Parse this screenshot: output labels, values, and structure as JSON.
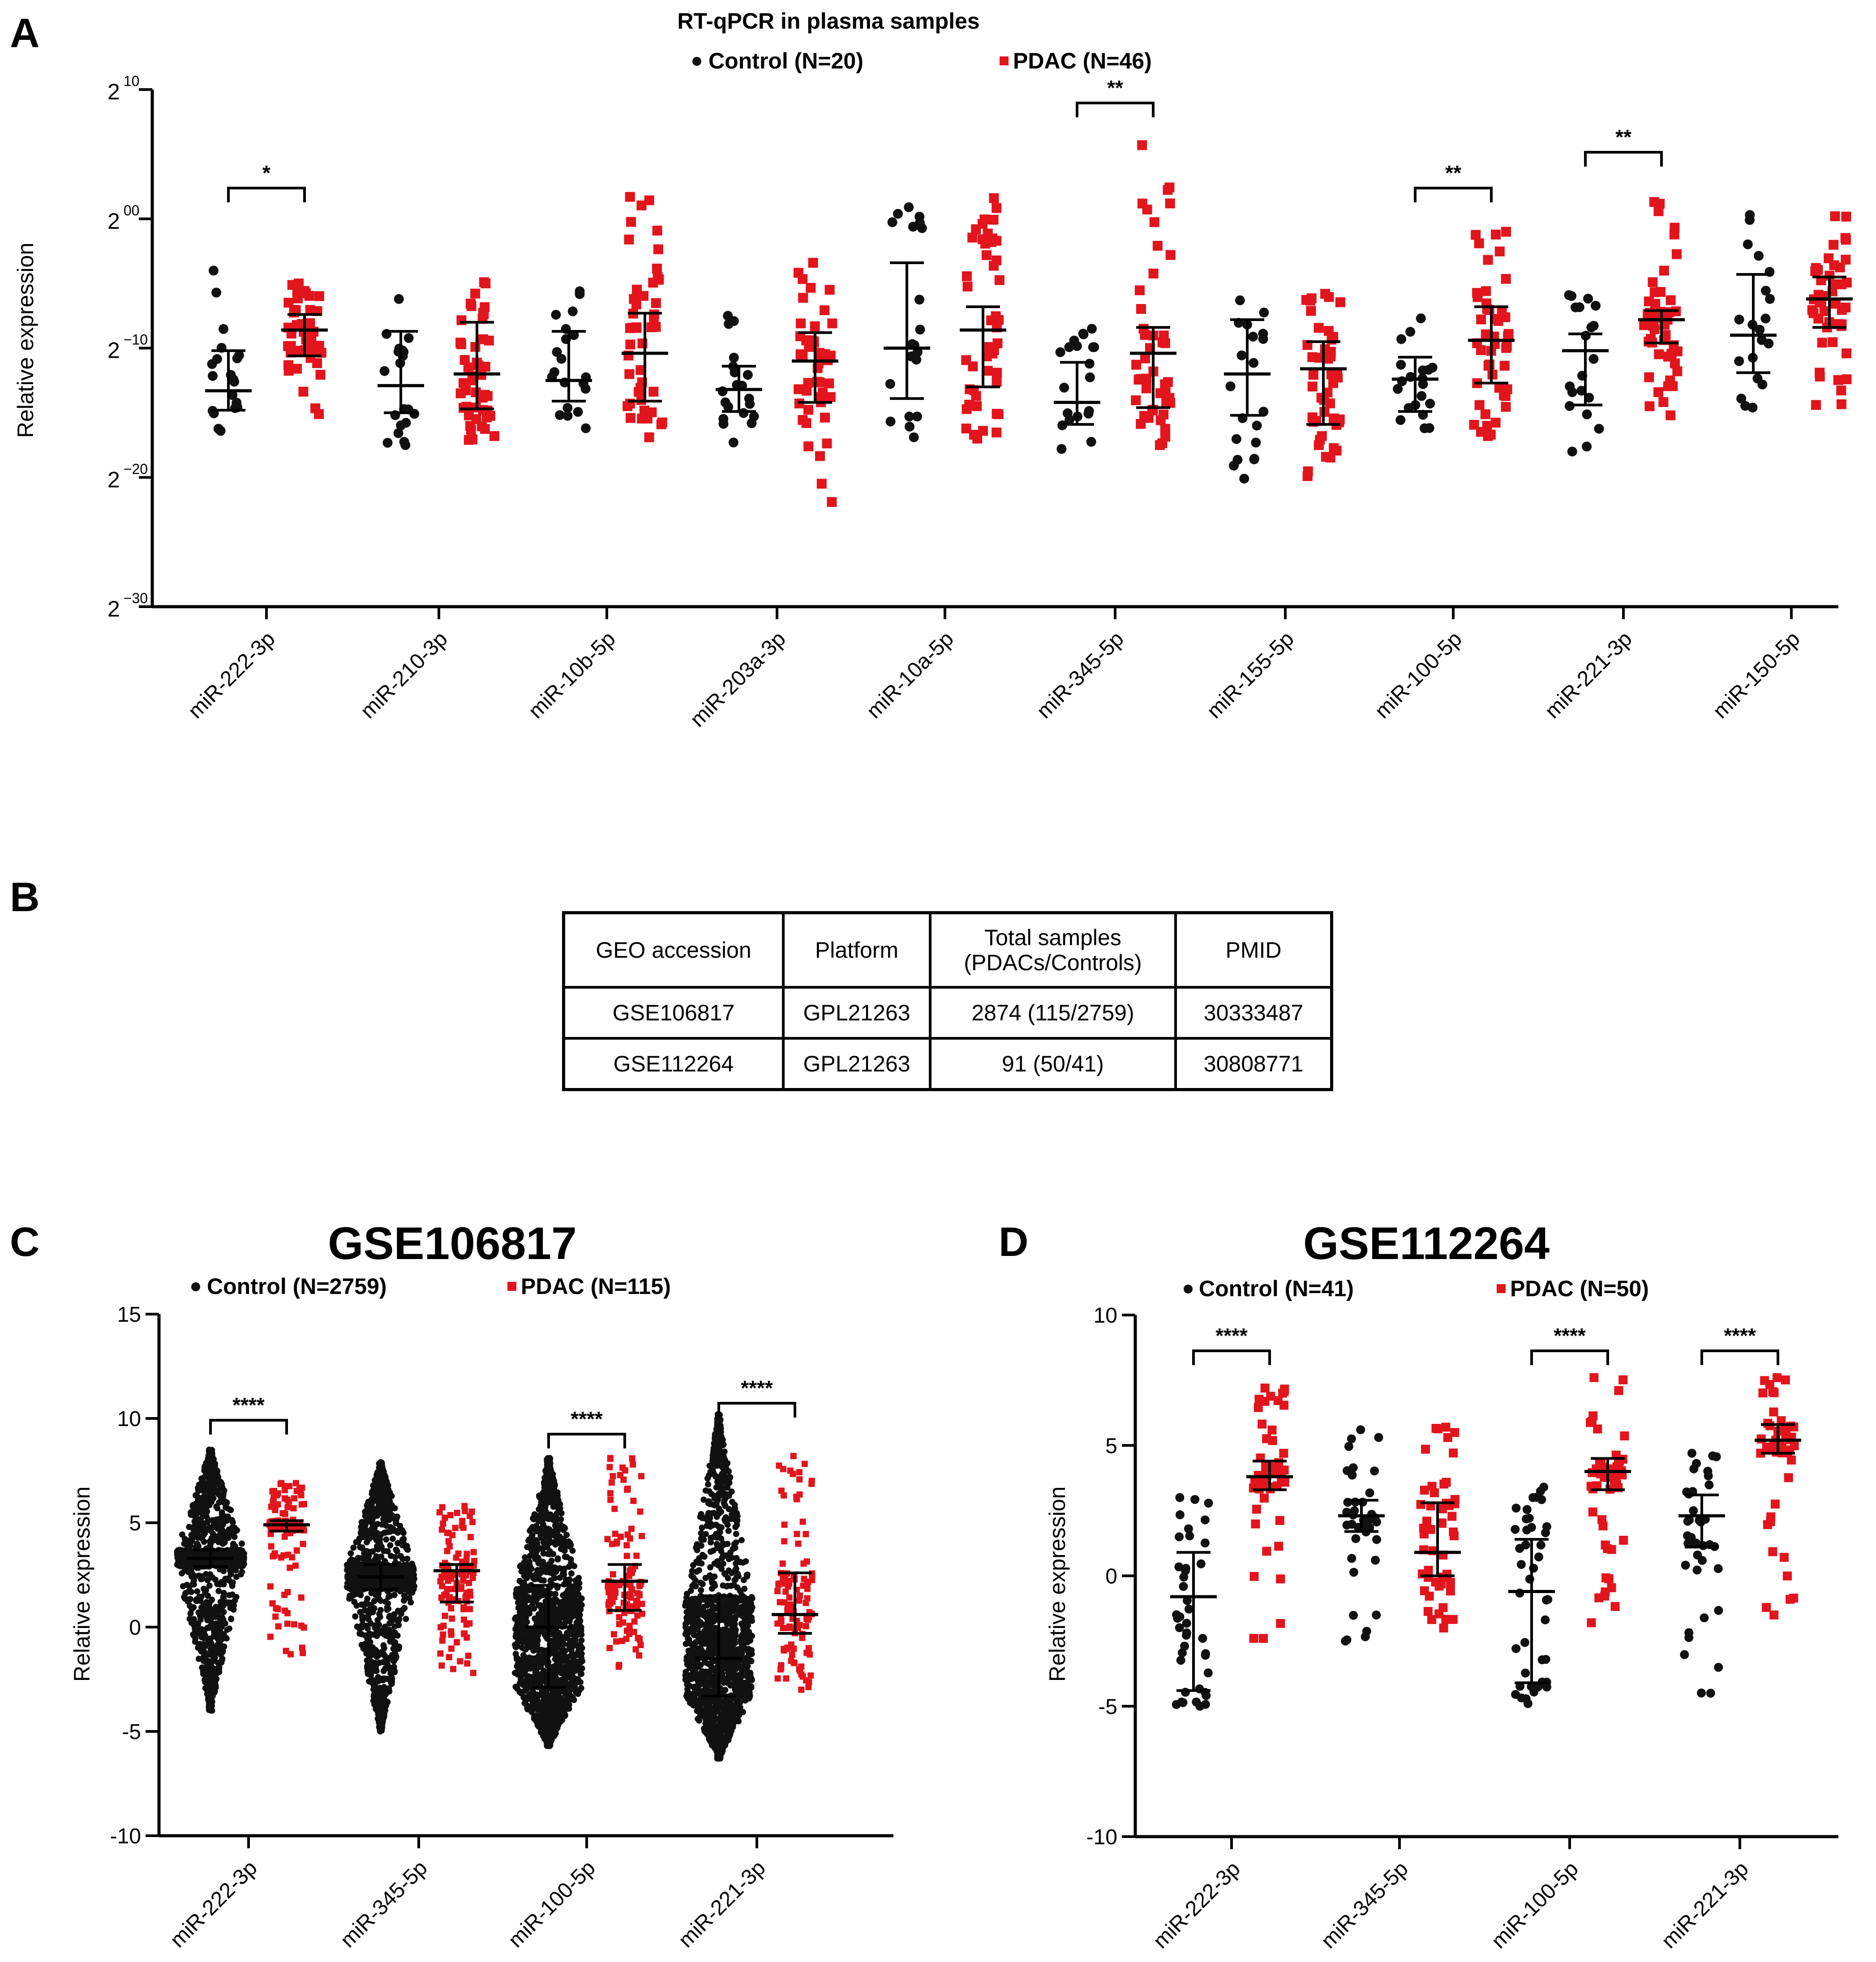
{
  "panels": {
    "A": {
      "letter": "A",
      "title": "RT-qPCR in plasma samples",
      "legend": {
        "control": "Control (N=20)",
        "pdac": "PDAC (N=46)"
      },
      "ylabel": "Relative expression",
      "yticks": [
        {
          "base": "2",
          "exp": "10",
          "value": 10
        },
        {
          "base": "2",
          "exp": "00",
          "value": 0
        },
        {
          "base": "2",
          "exp": "−10",
          "value": -10
        },
        {
          "base": "2",
          "exp": "−20",
          "value": -20
        },
        {
          "base": "2",
          "exp": "−30",
          "value": -30
        }
      ]
    },
    "B": {
      "letter": "B",
      "headers": [
        "GEO accession",
        "Platform",
        "Total samples\n(PDACs/Controls)",
        "PMID"
      ],
      "rows": [
        [
          "GSE106817",
          "GPL21263",
          "2874 (115/2759)",
          "30333487"
        ],
        [
          "GSE112264",
          "GPL21263",
          "91 (50/41)",
          "30808771"
        ]
      ]
    },
    "C": {
      "letter": "C",
      "title": "GSE106817",
      "legend": {
        "control": "Control (N=2759)",
        "pdac": "PDAC (N=115)"
      },
      "ylabel": "Relative expression"
    },
    "D": {
      "letter": "D",
      "title": "GSE112264",
      "legend": {
        "control": "Control (N=41)",
        "pdac": "PDAC (N=50)"
      },
      "ylabel": "Relative expression"
    }
  },
  "colors": {
    "control": "#111111",
    "pdac": "#e2141c",
    "axis": "#000000"
  },
  "chart_data": [
    {
      "id": "A",
      "type": "scatter",
      "title": "RT-qPCR in plasma samples",
      "ylabel": "Relative expression",
      "y_scale": "log2",
      "ylim": [
        -30,
        10
      ],
      "categories": [
        "miR-222-3p",
        "miR-210-3p",
        "miR-10b-5p",
        "miR-203a-3p",
        "miR-10a-5p",
        "miR-345-5p",
        "miR-155-5p",
        "miR-100-5p",
        "miR-221-3p",
        "miR-150-5p"
      ],
      "series": [
        {
          "name": "Control",
          "n": 20,
          "median": [
            -13.3,
            -12.9,
            -12.5,
            -13.2,
            -10.0,
            -14.2,
            -12.0,
            -12.4,
            -10.2,
            -9.0
          ],
          "q1": [
            -14.8,
            -15.0,
            -14.1,
            -14.9,
            -13.9,
            -15.9,
            -15.2,
            -14.9,
            -14.4,
            -11.9
          ],
          "q3": [
            -10.2,
            -8.7,
            -8.7,
            -11.4,
            -3.4,
            -11.1,
            -7.8,
            -10.7,
            -8.9,
            -4.3
          ],
          "min": [
            -16.4,
            -17.5,
            -16.2,
            -17.3,
            -16.9,
            -17.8,
            -20.1,
            -16.2,
            -18.0,
            -14.6
          ],
          "max": [
            -4.0,
            -6.2,
            -5.6,
            -7.5,
            0.9,
            -8.5,
            -6.3,
            -7.7,
            -5.9,
            0.3
          ]
        },
        {
          "name": "PDAC",
          "n": 46,
          "median": [
            -8.6,
            -12.0,
            -10.4,
            -11.0,
            -8.6,
            -10.4,
            -11.6,
            -9.4,
            -7.8,
            -6.2
          ],
          "q1": [
            -10.6,
            -14.7,
            -14.1,
            -14.2,
            -13.0,
            -14.6,
            -15.9,
            -12.7,
            -9.6,
            -8.4
          ],
          "q3": [
            -7.4,
            -8.0,
            -7.3,
            -8.8,
            -6.8,
            -8.4,
            -9.5,
            -6.8,
            -7.1,
            -4.5
          ],
          "min": [
            -15.1,
            -17.1,
            -16.9,
            -21.9,
            -17.0,
            -17.5,
            -19.9,
            -16.8,
            -15.2,
            -14.4
          ],
          "max": [
            -5.0,
            -4.9,
            1.7,
            -3.4,
            1.6,
            5.7,
            -5.8,
            -1.0,
            1.3,
            0.2
          ]
        }
      ],
      "significance": [
        {
          "category": "miR-222-3p",
          "label": "*"
        },
        {
          "category": "miR-345-5p",
          "label": "**"
        },
        {
          "category": "miR-100-5p",
          "label": "**"
        },
        {
          "category": "miR-221-3p",
          "label": "**"
        }
      ]
    },
    {
      "id": "C",
      "type": "scatter",
      "title": "GSE106817",
      "ylabel": "Relative expression",
      "ylim": [
        -10,
        15
      ],
      "yticks": [
        15,
        10,
        5,
        0,
        -5,
        -10
      ],
      "categories": [
        "miR-222-3p",
        "miR-345-5p",
        "miR-100-5p",
        "miR-221-3p"
      ],
      "series": [
        {
          "name": "Control",
          "n": 2759,
          "median": [
            3.3,
            2.4,
            0.0,
            -1.5
          ],
          "q1": [
            2.9,
            1.8,
            -2.9,
            -3.3
          ],
          "q3": [
            3.7,
            3.0,
            2.0,
            1.5
          ],
          "min": [
            -4.0,
            -5.0,
            -5.7,
            -6.3
          ],
          "max": [
            8.5,
            7.9,
            8.1,
            10.2
          ]
        },
        {
          "name": "PDAC",
          "n": 115,
          "median": [
            4.9,
            2.7,
            2.2,
            0.6
          ],
          "q1": [
            4.6,
            1.2,
            0.8,
            -0.3
          ],
          "q3": [
            5.1,
            3.0,
            3.0,
            2.6
          ],
          "min": [
            -1.3,
            -2.2,
            -1.9,
            -3.0
          ],
          "max": [
            6.9,
            5.8,
            8.1,
            8.2
          ]
        }
      ],
      "significance": [
        {
          "category": "miR-222-3p",
          "label": "****"
        },
        {
          "category": "miR-100-5p",
          "label": "****"
        },
        {
          "category": "miR-221-3p",
          "label": "****"
        }
      ]
    },
    {
      "id": "D",
      "type": "scatter",
      "title": "GSE112264",
      "ylabel": "Relative expression",
      "ylim": [
        -10,
        10
      ],
      "yticks": [
        10,
        5,
        0,
        -5,
        -10
      ],
      "categories": [
        "miR-222-3p",
        "miR-345-5p",
        "miR-100-5p",
        "miR-221-3p"
      ],
      "series": [
        {
          "name": "Control",
          "n": 41,
          "median": [
            -0.8,
            2.3,
            -0.6,
            2.3
          ],
          "q1": [
            -4.4,
            1.7,
            -4.1,
            1.1
          ],
          "q3": [
            0.9,
            2.9,
            1.4,
            3.1
          ],
          "min": [
            -5.0,
            -2.5,
            -4.9,
            -4.5
          ],
          "max": [
            3.0,
            5.6,
            3.4,
            4.7
          ]
        },
        {
          "name": "PDAC",
          "n": 50,
          "median": [
            3.8,
            0.9,
            4.0,
            5.2
          ],
          "q1": [
            3.3,
            0.0,
            3.3,
            4.7
          ],
          "q3": [
            4.4,
            2.8,
            4.5,
            5.8
          ],
          "min": [
            -2.4,
            -2.0,
            -1.8,
            -1.5
          ],
          "max": [
            7.2,
            5.7,
            7.6,
            7.6
          ]
        }
      ],
      "significance": [
        {
          "category": "miR-222-3p",
          "label": "****"
        },
        {
          "category": "miR-100-5p",
          "label": "****"
        },
        {
          "category": "miR-221-3p",
          "label": "****"
        }
      ]
    }
  ]
}
